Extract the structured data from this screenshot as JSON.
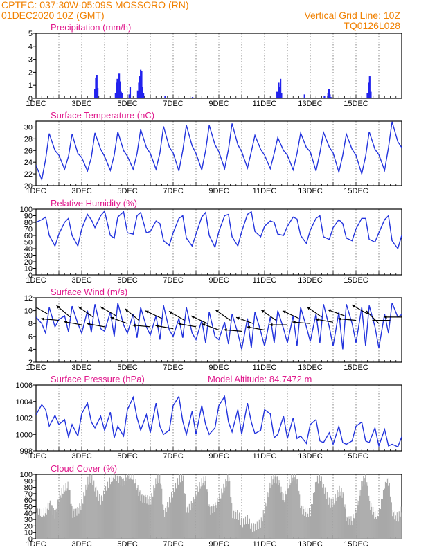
{
  "header": {
    "line1": "CPTEC:   037:30W-05:09S   MOSSORO (RN)",
    "line2": "01DEC2020 10Z (GMT)",
    "grid_note": "Vertical Grid Line: 10Z",
    "run_code": "TQ0126L028"
  },
  "colors": {
    "header": "#f08000",
    "title": "#e0188c",
    "line": "#2233dd",
    "bar": "#2222ee",
    "cloud": "#a8a8a8",
    "arrow": "#000000"
  },
  "x_ticks": [
    "1DEC",
    "3DEC",
    "5DEC",
    "7DEC",
    "9DEC",
    "11DEC",
    "13DEC",
    "15DEC"
  ],
  "chart_data": [
    {
      "id": "precip",
      "type": "bar",
      "title": "Precipitation (mm/h)",
      "ylim": [
        0,
        5
      ],
      "yticks": [
        "0",
        "1",
        "2",
        "3",
        "4",
        "5"
      ],
      "x_unit": "days since 01DEC2020 00Z",
      "x": [
        2.58,
        2.62,
        2.66,
        2.7,
        3.48,
        3.52,
        3.56,
        3.6,
        3.64,
        3.68,
        3.72,
        3.76,
        4.08,
        4.12,
        4.45,
        4.5,
        4.54,
        4.58,
        4.62,
        4.66,
        4.7,
        5.65,
        6.85,
        10.55,
        10.62,
        10.66,
        10.7,
        10.74,
        11.75,
        12.62,
        12.78,
        12.82,
        12.86,
        12.9,
        14.5,
        14.55,
        14.6,
        14.65
      ],
      "values": [
        0.7,
        1.6,
        1.8,
        0.8,
        0.4,
        1.2,
        1.5,
        0.6,
        1.9,
        1.3,
        0.5,
        0.4,
        0.3,
        0.9,
        0.6,
        1.2,
        1.7,
        2.2,
        2.1,
        0.9,
        0.4,
        0.2,
        0.1,
        0.5,
        1.2,
        0.9,
        1.5,
        0.4,
        0.3,
        0.2,
        0.4,
        0.7,
        0.3,
        0.1,
        0.4,
        1.2,
        1.7,
        0.5
      ]
    },
    {
      "id": "temp",
      "type": "line",
      "title": "Surface Temperature (nC)",
      "ylim": [
        20,
        31
      ],
      "yticks": [
        "20",
        "22",
        "24",
        "26",
        "28",
        "30"
      ],
      "x_unit": "days since 01DEC2020 00Z",
      "x": [
        0,
        0.25,
        0.42,
        0.58,
        0.83,
        1.0,
        1.25,
        1.42,
        1.58,
        1.83,
        2.0,
        2.25,
        2.42,
        2.58,
        2.83,
        3.0,
        3.25,
        3.42,
        3.58,
        3.83,
        4.0,
        4.25,
        4.42,
        4.58,
        4.83,
        5.0,
        5.25,
        5.42,
        5.58,
        5.83,
        6.0,
        6.25,
        6.42,
        6.58,
        6.83,
        7.0,
        7.25,
        7.42,
        7.58,
        7.83,
        8.0,
        8.25,
        8.42,
        8.58,
        8.83,
        9.0,
        9.25,
        9.42,
        9.58,
        9.83,
        10.0,
        10.25,
        10.42,
        10.58,
        10.83,
        11.0,
        11.25,
        11.42,
        11.58,
        11.83,
        12.0,
        12.25,
        12.42,
        12.58,
        12.83,
        13.0,
        13.25,
        13.42,
        13.58,
        13.83,
        14.0,
        14.25,
        14.42,
        14.58,
        14.83,
        15.0,
        15.25,
        15.42,
        15.58,
        15.83,
        16.0
      ],
      "values": [
        23.5,
        21.0,
        24.5,
        28.9,
        26.0,
        25.2,
        22.8,
        25.0,
        28.8,
        25.5,
        24.8,
        22.5,
        24.8,
        29.0,
        26.2,
        25.0,
        22.6,
        25.2,
        29.2,
        26.0,
        25.0,
        22.8,
        25.5,
        29.6,
        26.5,
        25.5,
        22.8,
        25.6,
        30.1,
        26.6,
        25.6,
        22.5,
        26.0,
        30.3,
        26.8,
        25.5,
        22.7,
        26.0,
        30.3,
        27.0,
        25.8,
        22.9,
        26.2,
        30.6,
        27.0,
        25.8,
        23.0,
        25.8,
        28.6,
        26.2,
        25.2,
        22.9,
        25.5,
        28.2,
        26.0,
        25.2,
        22.7,
        25.5,
        29.0,
        26.5,
        25.8,
        22.5,
        25.6,
        29.1,
        26.6,
        25.6,
        22.3,
        25.2,
        28.8,
        26.2,
        25.2,
        22.0,
        25.0,
        29.2,
        26.2,
        25.3,
        22.6,
        26.5,
        30.9,
        27.5,
        26.5
      ]
    },
    {
      "id": "rh",
      "type": "line",
      "title": "Relative Humidity (%)",
      "ylim": [
        0,
        100
      ],
      "yticks": [
        "0",
        "10",
        "20",
        "30",
        "40",
        "50",
        "60",
        "70",
        "80",
        "90",
        "100"
      ],
      "x_unit": "days since 01DEC2020 00Z",
      "x": [
        0,
        0.25,
        0.42,
        0.58,
        0.83,
        1.0,
        1.25,
        1.42,
        1.58,
        1.83,
        2.0,
        2.25,
        2.42,
        2.58,
        2.83,
        3.0,
        3.25,
        3.42,
        3.58,
        3.83,
        4.0,
        4.25,
        4.42,
        4.58,
        4.83,
        5.0,
        5.25,
        5.42,
        5.58,
        5.83,
        6.0,
        6.25,
        6.42,
        6.58,
        6.83,
        7.0,
        7.25,
        7.42,
        7.58,
        7.83,
        8.0,
        8.25,
        8.42,
        8.58,
        8.83,
        9.0,
        9.25,
        9.42,
        9.58,
        9.83,
        10.0,
        10.25,
        10.42,
        10.58,
        10.83,
        11.0,
        11.25,
        11.42,
        11.58,
        11.83,
        12.0,
        12.25,
        12.42,
        12.58,
        12.83,
        13.0,
        13.25,
        13.42,
        13.58,
        13.83,
        14.0,
        14.25,
        14.42,
        14.58,
        14.83,
        15.0,
        15.25,
        15.42,
        15.58,
        15.83,
        16.0
      ],
      "values": [
        80,
        84,
        88,
        60,
        44,
        62,
        80,
        86,
        60,
        44,
        70,
        92,
        84,
        72,
        90,
        97,
        60,
        56,
        88,
        96,
        64,
        62,
        90,
        95,
        64,
        66,
        82,
        78,
        52,
        45,
        64,
        86,
        90,
        56,
        44,
        62,
        88,
        95,
        60,
        42,
        66,
        90,
        92,
        58,
        44,
        66,
        92,
        96,
        66,
        58,
        74,
        82,
        80,
        62,
        60,
        74,
        88,
        85,
        60,
        48,
        68,
        86,
        90,
        58,
        54,
        72,
        84,
        78,
        56,
        52,
        70,
        86,
        86,
        54,
        50,
        64,
        84,
        90,
        52,
        40,
        60
      ]
    },
    {
      "id": "wind",
      "type": "line",
      "title": "Surface Wind (m/s)",
      "ylim": [
        2,
        12
      ],
      "yticks": [
        "2",
        "4",
        "6",
        "8",
        "10",
        "12"
      ],
      "x_unit": "days since 01DEC2020 00Z",
      "x": [
        0,
        0.25,
        0.42,
        0.58,
        0.83,
        1.0,
        1.25,
        1.42,
        1.58,
        1.83,
        2.0,
        2.25,
        2.42,
        2.58,
        2.83,
        3.0,
        3.25,
        3.42,
        3.58,
        3.83,
        4.0,
        4.25,
        4.42,
        4.58,
        4.83,
        5.0,
        5.25,
        5.42,
        5.58,
        5.83,
        6.0,
        6.25,
        6.42,
        6.58,
        6.83,
        7.0,
        7.25,
        7.42,
        7.58,
        7.83,
        8.0,
        8.25,
        8.42,
        8.58,
        8.83,
        9.0,
        9.25,
        9.42,
        9.58,
        9.83,
        10.0,
        10.25,
        10.42,
        10.58,
        10.83,
        11.0,
        11.25,
        11.42,
        11.58,
        11.83,
        12.0,
        12.25,
        12.42,
        12.58,
        12.83,
        13.0,
        13.25,
        13.42,
        13.58,
        13.83,
        14.0,
        14.25,
        14.42,
        14.58,
        14.83,
        15.0,
        15.25,
        15.42,
        15.58,
        15.83,
        16.0
      ],
      "values": [
        9.0,
        8.0,
        6.5,
        10.5,
        7.5,
        8.6,
        9.2,
        6.7,
        10.7,
        8.0,
        6.5,
        10.0,
        6.6,
        11.0,
        7.2,
        6.8,
        9.8,
        6.0,
        11.2,
        7.8,
        6.5,
        9.5,
        5.8,
        10.5,
        7.5,
        6.2,
        9.2,
        5.5,
        10.8,
        7.0,
        6.0,
        8.8,
        5.8,
        10.5,
        6.5,
        5.5,
        8.5,
        5.0,
        9.8,
        6.0,
        5.5,
        8.2,
        4.8,
        9.5,
        6.5,
        4.0,
        8.8,
        4.2,
        9.8,
        6.8,
        4.5,
        9.0,
        5.0,
        10.0,
        7.2,
        5.0,
        9.2,
        4.5,
        10.5,
        7.5,
        5.2,
        9.5,
        5.0,
        11.0,
        7.5,
        4.5,
        9.8,
        4.0,
        11.0,
        8.0,
        5.0,
        10.5,
        4.5,
        10.8,
        7.5,
        4.2,
        9.5,
        6.5,
        11.2,
        9.0,
        9.4
      ],
      "arrows": {
        "x": [
          0.5,
          1.0,
          1.5,
          2.0,
          2.5,
          3.0,
          3.5,
          4.0,
          4.5,
          5.0,
          5.5,
          6.0,
          6.5,
          7.0,
          7.5,
          8.0,
          8.5,
          9.0,
          9.5,
          10.0,
          10.5,
          11.0,
          11.5,
          12.0,
          12.5,
          13.0,
          13.5,
          14.0,
          14.5,
          15.0,
          15.5,
          16.0
        ],
        "speed": [
          9.5,
          8.5,
          9.0,
          7.8,
          9.0,
          7.5,
          9.2,
          8.0,
          8.5,
          7.5,
          8.8,
          7.2,
          8.5,
          7.5,
          8.0,
          7.0,
          8.5,
          6.8,
          8.0,
          7.0,
          8.5,
          7.8,
          8.8,
          8.0,
          9.0,
          8.2,
          9.2,
          8.5,
          9.5,
          8.0,
          8.5,
          9.0
        ],
        "dir_deg": [
          120,
          95,
          130,
          100,
          125,
          100,
          120,
          110,
          130,
          95,
          115,
          100,
          120,
          100,
          115,
          110,
          125,
          95,
          110,
          100,
          125,
          90,
          115,
          95,
          125,
          100,
          110,
          95,
          120,
          135,
          90,
          90
        ]
      }
    },
    {
      "id": "pressure",
      "type": "line",
      "title": "Surface Pressure (hPa)",
      "altitude_label": "Model Altitude: 84.7472 m",
      "ylim": [
        998,
        1006
      ],
      "yticks": [
        "998",
        "1000",
        "1002",
        "1004",
        "1006"
      ],
      "x_unit": "days since 01DEC2020 00Z",
      "x": [
        0,
        0.25,
        0.42,
        0.58,
        0.83,
        1.0,
        1.25,
        1.42,
        1.58,
        1.83,
        2.0,
        2.25,
        2.42,
        2.58,
        2.83,
        3.0,
        3.25,
        3.42,
        3.58,
        3.83,
        4.0,
        4.25,
        4.42,
        4.58,
        4.83,
        5.0,
        5.25,
        5.42,
        5.58,
        5.83,
        6.0,
        6.25,
        6.42,
        6.58,
        6.83,
        7.0,
        7.25,
        7.42,
        7.58,
        7.83,
        8.0,
        8.25,
        8.42,
        8.58,
        8.83,
        9.0,
        9.25,
        9.42,
        9.58,
        9.83,
        10.0,
        10.25,
        10.42,
        10.58,
        10.83,
        11.0,
        11.25,
        11.42,
        11.58,
        11.83,
        12.0,
        12.25,
        12.42,
        12.58,
        12.83,
        13.0,
        13.25,
        13.42,
        13.58,
        13.83,
        14.0,
        14.25,
        14.42,
        14.58,
        14.83,
        15.0,
        15.25,
        15.42,
        15.58,
        15.83,
        16.0
      ],
      "values": [
        1002.4,
        1003.6,
        1003.0,
        1001.0,
        1002.3,
        1001.2,
        1001.8,
        999.7,
        1001.2,
        999.8,
        1002.5,
        1003.8,
        1001.5,
        1000.8,
        1002.2,
        1000.5,
        1002.7,
        999.6,
        1001.0,
        999.8,
        1003.0,
        1004.5,
        1002.0,
        1000.5,
        1002.4,
        1000.2,
        1003.8,
        1001.0,
        1000.0,
        1000.5,
        1003.5,
        1004.6,
        1001.6,
        1000.0,
        1002.8,
        1000.0,
        1003.5,
        1001.2,
        1000.0,
        1000.8,
        1003.5,
        1004.6,
        1001.5,
        1000.3,
        1003.0,
        1000.0,
        1003.8,
        1001.5,
        1000.1,
        1000.5,
        1003.0,
        1002.5,
        999.6,
        1000.0,
        1002.2,
        999.5,
        1002.0,
        999.5,
        999.8,
        998.9,
        1001.2,
        1001.8,
        999.2,
        999.0,
        1000.2,
        998.8,
        1001.0,
        999.0,
        998.8,
        999.2,
        1001.0,
        1001.5,
        999.2,
        999.0,
        1000.8,
        998.6,
        1000.6,
        998.6,
        998.8,
        998.5,
        999.7
      ]
    },
    {
      "id": "cloud",
      "type": "area",
      "title": "Cloud Cover (%)",
      "ylim": [
        0,
        100
      ],
      "yticks": [
        "0",
        "10",
        "20",
        "30",
        "40",
        "50",
        "60",
        "70",
        "80",
        "90",
        "100"
      ],
      "x_unit": "days since 01DEC2020 00Z",
      "x": [
        0,
        0.25,
        0.42,
        0.58,
        0.83,
        1.0,
        1.25,
        1.42,
        1.58,
        1.83,
        2.0,
        2.25,
        2.42,
        2.58,
        2.83,
        3.0,
        3.25,
        3.42,
        3.58,
        3.83,
        4.0,
        4.25,
        4.42,
        4.58,
        4.83,
        5.0,
        5.25,
        5.42,
        5.58,
        5.83,
        6.0,
        6.25,
        6.42,
        6.58,
        6.83,
        7.0,
        7.25,
        7.42,
        7.58,
        7.83,
        8.0,
        8.25,
        8.42,
        8.58,
        8.83,
        9.0,
        9.25,
        9.42,
        9.58,
        9.83,
        10.0,
        10.25,
        10.42,
        10.58,
        10.83,
        11.0,
        11.25,
        11.42,
        11.58,
        11.83,
        12.0,
        12.25,
        12.42,
        12.58,
        12.83,
        13.0,
        13.25,
        13.42,
        13.58,
        13.83,
        14.0,
        14.25,
        14.42,
        14.58,
        14.83,
        15.0,
        15.25,
        15.42,
        15.58,
        15.83,
        16.0
      ],
      "values": [
        40,
        38,
        42,
        55,
        38,
        66,
        78,
        82,
        40,
        45,
        55,
        88,
        95,
        78,
        60,
        72,
        90,
        100,
        95,
        88,
        100,
        95,
        78,
        65,
        62,
        58,
        90,
        96,
        40,
        60,
        72,
        92,
        98,
        45,
        55,
        70,
        88,
        90,
        45,
        50,
        62,
        82,
        98,
        40,
        38,
        22,
        30,
        18,
        20,
        25,
        45,
        88,
        95,
        92,
        60,
        80,
        99,
        90,
        48,
        40,
        40,
        88,
        98,
        80,
        55,
        55,
        75,
        70,
        30,
        28,
        45,
        88,
        95,
        55,
        35,
        40,
        80,
        92,
        40,
        32,
        45
      ]
    }
  ]
}
